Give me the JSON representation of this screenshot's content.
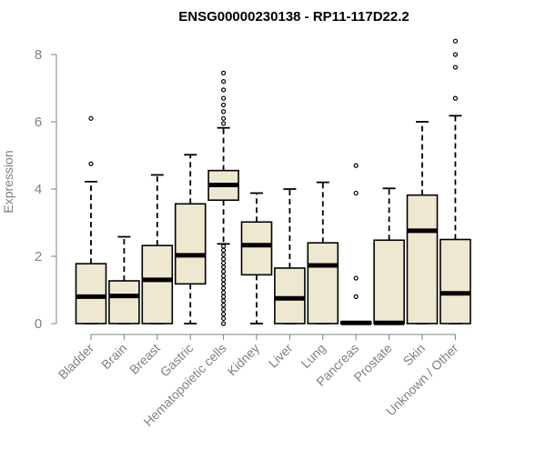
{
  "chart_data": {
    "type": "boxplot",
    "title": "ENSG00000230138 - RP11-117D22.2",
    "ylabel": "Expression",
    "xlabel": "",
    "ylim": [
      0,
      8.5
    ],
    "y_ticks": [
      0,
      2,
      4,
      6,
      8
    ],
    "grid": false,
    "legend": "none",
    "colors": {
      "box_fill": "#efe8d0",
      "box_stroke": "#000000",
      "median": "#000000",
      "axis_text": "#808080",
      "title": "#000000"
    },
    "categories": [
      "Bladder",
      "Brain",
      "Breast",
      "Gastric",
      "Hematopoietic cells",
      "Kidney",
      "Liver",
      "Lung",
      "Pancreas",
      "Prostate",
      "Skin",
      "Unknown / Other"
    ],
    "boxes": [
      {
        "category": "Bladder",
        "whisker_low": 0,
        "q1": 0,
        "median": 0.8,
        "q3": 1.78,
        "whisker_high": 4.22,
        "outliers": [
          4.75,
          6.1
        ]
      },
      {
        "category": "Brain",
        "whisker_low": 0,
        "q1": 0,
        "median": 0.82,
        "q3": 1.27,
        "whisker_high": 2.58,
        "outliers": []
      },
      {
        "category": "Breast",
        "whisker_low": 0,
        "q1": 0,
        "median": 1.3,
        "q3": 2.32,
        "whisker_high": 4.42,
        "outliers": []
      },
      {
        "category": "Gastric",
        "whisker_low": 0,
        "q1": 1.18,
        "median": 2.03,
        "q3": 3.56,
        "whisker_high": 5.02,
        "outliers": []
      },
      {
        "category": "Hematopoietic cells",
        "whisker_low": 2.37,
        "q1": 3.67,
        "median": 4.12,
        "q3": 4.55,
        "whisker_high": 5.82,
        "outliers": [
          0.0,
          0.15,
          0.28,
          0.42,
          0.55,
          0.68,
          0.8,
          0.92,
          1.05,
          1.18,
          1.3,
          1.42,
          1.55,
          1.68,
          1.8,
          1.92,
          2.05,
          2.18,
          2.3,
          5.95,
          6.1,
          6.3,
          6.5,
          6.7,
          6.95,
          7.2,
          7.45
        ]
      },
      {
        "category": "Kidney",
        "whisker_low": 0,
        "q1": 1.45,
        "median": 2.33,
        "q3": 3.02,
        "whisker_high": 3.88,
        "outliers": []
      },
      {
        "category": "Liver",
        "whisker_low": 0,
        "q1": 0,
        "median": 0.75,
        "q3": 1.65,
        "whisker_high": 4.0,
        "outliers": []
      },
      {
        "category": "Lung",
        "whisker_low": 0,
        "q1": 0,
        "median": 1.73,
        "q3": 2.4,
        "whisker_high": 4.2,
        "outliers": []
      },
      {
        "category": "Pancreas",
        "whisker_low": 0,
        "q1": 0,
        "median": 0.02,
        "q3": 0.05,
        "whisker_high": 0.05,
        "outliers": [
          0.8,
          1.35,
          3.88,
          4.7
        ]
      },
      {
        "category": "Prostate",
        "whisker_low": 0,
        "q1": 0,
        "median": 0.02,
        "q3": 2.48,
        "whisker_high": 4.02,
        "outliers": []
      },
      {
        "category": "Skin",
        "whisker_low": 0,
        "q1": 0,
        "median": 2.76,
        "q3": 3.82,
        "whisker_high": 6.0,
        "outliers": []
      },
      {
        "category": "Unknown / Other",
        "whisker_low": 0,
        "q1": 0,
        "median": 0.9,
        "q3": 2.5,
        "whisker_high": 6.18,
        "outliers": [
          6.7,
          7.62,
          8.0,
          8.4
        ]
      }
    ]
  }
}
